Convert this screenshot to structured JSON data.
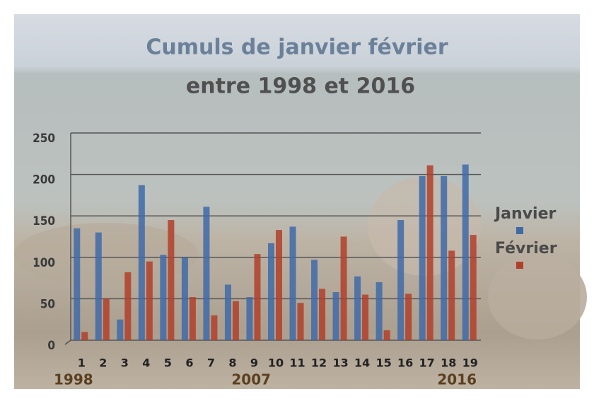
{
  "chart_data": {
    "type": "bar",
    "title": "Cumuls de janvier février",
    "subtitle": "entre 1998 et 2016",
    "categories": [
      "1",
      "2",
      "3",
      "4",
      "5",
      "6",
      "7",
      "8",
      "9",
      "10",
      "11",
      "12",
      "13",
      "14",
      "15",
      "16",
      "17",
      "18",
      "19"
    ],
    "series": [
      {
        "name": "Janvier",
        "color": "#3f6aa8",
        "values": [
          135,
          130,
          25,
          187,
          103,
          100,
          161,
          67,
          52,
          117,
          137,
          97,
          58,
          77,
          70,
          145,
          198,
          198,
          212
        ]
      },
      {
        "name": "Février",
        "color": "#b0402a",
        "values": [
          10,
          50,
          82,
          95,
          145,
          52,
          30,
          47,
          104,
          133,
          45,
          62,
          125,
          55,
          12,
          56,
          211,
          108,
          127
        ]
      }
    ],
    "x_annotations": [
      "1998",
      "2007",
      "2016"
    ],
    "ylim": [
      0,
      250
    ],
    "yticks": [
      0,
      50,
      100,
      150,
      200,
      250
    ],
    "grid": true,
    "legend": "right"
  }
}
